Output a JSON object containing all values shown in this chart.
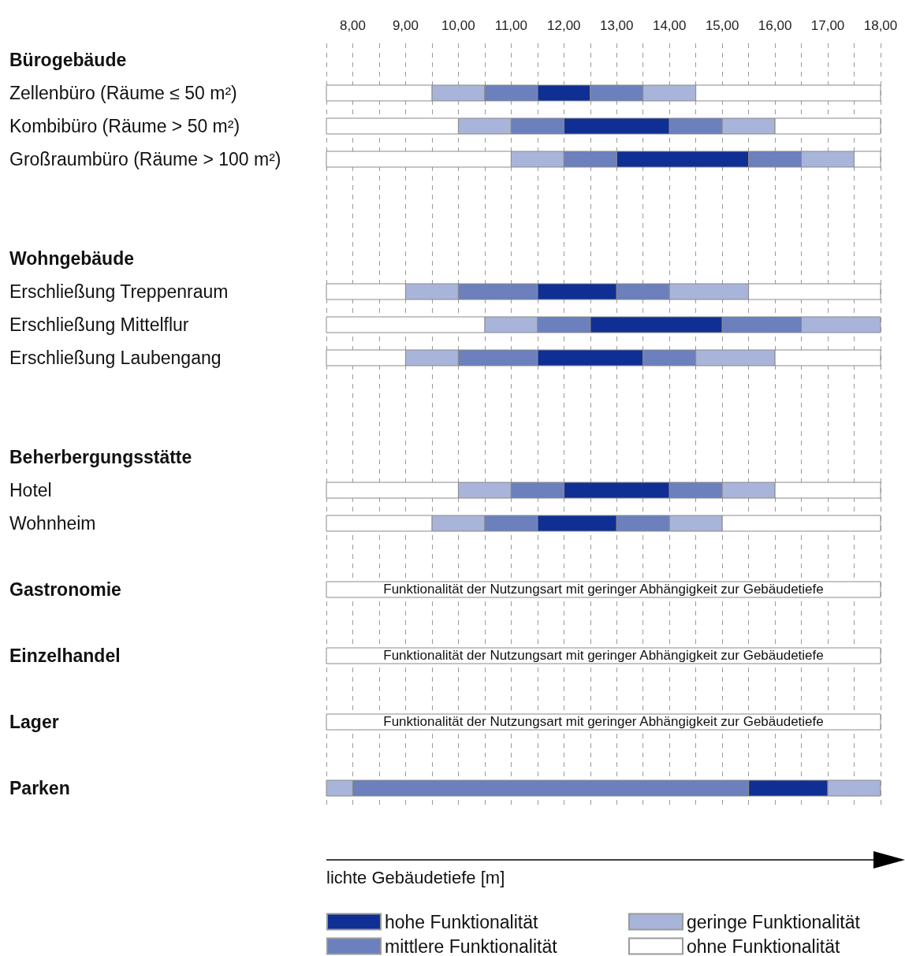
{
  "chart_data": {
    "type": "bar",
    "orientation": "horizontal",
    "xlabel": "lichte Gebäudetiefe [m]",
    "categories": [
      "Bürogebäude",
      "Zellenbüro (Räume ≤ 50 m²)",
      "Kombibüro (Räume > 50 m²)",
      "Großraumbüro (Räume > 100 m²)",
      null,
      null,
      "Wohngebäude",
      "Erschließung Treppenraum",
      "Erschließung Mittelflur",
      "Erschließung Laubengang",
      null,
      null,
      "Beherbergungsstätte",
      "Hotel",
      "Wohnheim",
      null,
      "Gastronomie",
      null,
      "Einzelhandel",
      null,
      "Lager",
      null,
      "Parken"
    ],
    "xlim": [
      7.5,
      18
    ],
    "xticks": [
      {
        "value": 7.5,
        "label": null
      },
      {
        "value": 8,
        "label": "8,00"
      },
      {
        "value": 8.5,
        "label": null
      },
      {
        "value": 9,
        "label": "9,00"
      },
      {
        "value": 9.5,
        "label": null
      },
      {
        "value": 10,
        "label": "10,00"
      },
      {
        "value": 10.5,
        "label": null
      },
      {
        "value": 11,
        "label": "11,00"
      },
      {
        "value": 11.5,
        "label": null
      },
      {
        "value": 12,
        "label": "12,00"
      },
      {
        "value": 12.5,
        "label": null
      },
      {
        "value": 13,
        "label": "13,00"
      },
      {
        "value": 13.5,
        "label": null
      },
      {
        "value": 14,
        "label": "14,00"
      },
      {
        "value": 14.5,
        "label": null
      },
      {
        "value": 15,
        "label": "15,00"
      },
      {
        "value": 15.5,
        "label": null
      },
      {
        "value": 16,
        "label": "16,00"
      },
      {
        "value": 16.5,
        "label": null
      },
      {
        "value": 17,
        "label": "17,00"
      },
      {
        "value": 17.5,
        "label": null
      },
      {
        "value": 18,
        "label": "18,00"
      }
    ],
    "grid": "x",
    "legend": "bottom",
    "series": [
      {
        "name": "hohe Funktionalität",
        "color": "#0f2f94",
        "values": [
          null,
          1,
          2,
          2.5,
          null,
          null,
          null,
          1.5,
          2.5,
          2,
          null,
          null,
          null,
          2,
          1.5,
          null,
          null,
          null,
          null,
          null,
          null,
          null,
          1.5
        ],
        "base": [
          null,
          11.5,
          12,
          13,
          null,
          null,
          null,
          11.5,
          12.5,
          11.5,
          null,
          null,
          null,
          12,
          11.5,
          null,
          null,
          null,
          null,
          null,
          null,
          null,
          15.5
        ]
      },
      {
        "name": "geringe Funktionalität",
        "color": "#a8b4d9",
        "values": [
          null,
          1,
          1,
          1,
          null,
          null,
          null,
          1,
          1,
          1,
          null,
          null,
          null,
          1,
          1,
          null,
          null,
          null,
          null,
          null,
          null,
          null,
          0.5
        ],
        "base": [
          null,
          9.5,
          10,
          11,
          null,
          null,
          null,
          9,
          10.5,
          9,
          null,
          null,
          null,
          10,
          9.5,
          null,
          null,
          null,
          null,
          null,
          null,
          null,
          7.5
        ]
      },
      {
        "name": "mittlere Funktionalität",
        "color": "#6b80bd",
        "values": [
          null,
          1,
          1,
          1,
          null,
          null,
          null,
          1.5,
          1,
          1.5,
          null,
          null,
          null,
          1,
          1,
          null,
          null,
          null,
          null,
          null,
          null,
          null,
          7.5
        ],
        "base": [
          null,
          10.5,
          11,
          12,
          null,
          null,
          null,
          10,
          11.5,
          10,
          null,
          null,
          null,
          11,
          10.5,
          null,
          null,
          null,
          null,
          null,
          null,
          null,
          8
        ]
      },
      {
        "name": "ohne Funktionalität",
        "color": "#ffffff",
        "values": [
          null,
          2,
          2.5,
          3.5,
          null,
          null,
          null,
          1.5,
          3,
          1.5,
          null,
          null,
          null,
          2.5,
          2,
          null,
          10.5,
          null,
          10.5,
          null,
          10.5,
          null,
          null
        ],
        "base": [
          null,
          7.5,
          7.5,
          7.5,
          null,
          null,
          null,
          7.5,
          7.5,
          7.5,
          null,
          null,
          null,
          7.5,
          7.5,
          null,
          7.5,
          null,
          7.5,
          null,
          7.5,
          null,
          null
        ]
      },
      {
        "color": "#6b80bd",
        "values": [
          null,
          1,
          1,
          1,
          null,
          null,
          null,
          1,
          1.5,
          1,
          null,
          null,
          null,
          1,
          1,
          null,
          null,
          null,
          null,
          null,
          null,
          null,
          null
        ],
        "base": [
          null,
          12.5,
          14,
          15.5,
          null,
          null,
          null,
          13,
          15,
          13.5,
          null,
          null,
          null,
          14,
          13,
          null,
          null,
          null,
          null,
          null,
          null,
          null,
          null
        ]
      },
      {
        "color": "#a8b4d9",
        "values": [
          null,
          1,
          1,
          1,
          null,
          null,
          null,
          1.5,
          1.5,
          1.5,
          null,
          null,
          null,
          1,
          1,
          null,
          null,
          null,
          null,
          null,
          null,
          null,
          1
        ],
        "base": [
          null,
          13.5,
          15,
          16.5,
          null,
          null,
          null,
          14,
          16.5,
          14.5,
          null,
          null,
          null,
          15,
          14,
          null,
          null,
          null,
          null,
          null,
          null,
          null,
          17
        ]
      },
      {
        "color": "#ffffff",
        "values": [
          null,
          3.5,
          2,
          0.5,
          null,
          null,
          null,
          2.5,
          null,
          2,
          null,
          null,
          null,
          2,
          3,
          null,
          null,
          null,
          null,
          null,
          null,
          null,
          null
        ],
        "base": [
          null,
          14.5,
          16,
          17.5,
          null,
          null,
          null,
          15.5,
          null,
          16,
          null,
          null,
          null,
          16,
          15,
          null,
          null,
          null,
          null,
          null,
          null,
          null,
          null
        ]
      }
    ],
    "annotations": [
      "Funktionalität der Nutzungsart mit geringer Abhängigkeit zur Gebäudetiefe",
      "Funktionalität der Nutzungsart mit geringer Abhängigkeit zur Gebäudetiefe",
      "Funktionalität der Nutzungsart mit geringer Abhängigkeit zur Gebäudetiefe"
    ]
  }
}
